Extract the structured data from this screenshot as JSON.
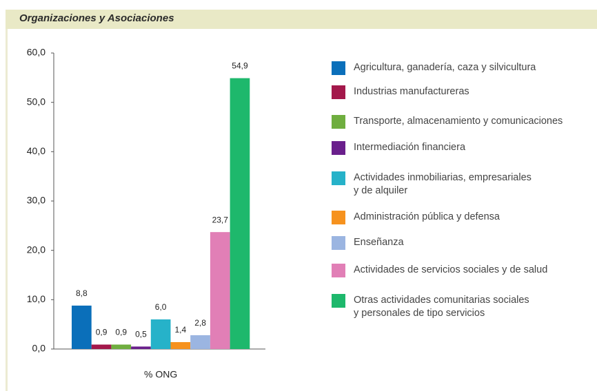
{
  "chart_data": {
    "type": "bar",
    "title": "Organizaciones y Asociaciones",
    "categories": [
      "% ONG"
    ],
    "ylim": [
      0,
      60
    ],
    "yticks": [
      {
        "value": 0,
        "label": "0,0"
      },
      {
        "value": 10,
        "label": "10,0"
      },
      {
        "value": 20,
        "label": "20,0"
      },
      {
        "value": 30,
        "label": "30,0"
      },
      {
        "value": 40,
        "label": "40,0"
      },
      {
        "value": 50,
        "label": "50,0"
      },
      {
        "value": 60,
        "label": "60,0"
      }
    ],
    "grid": false,
    "legend": "right",
    "series": [
      {
        "name": "Agricultura, ganadería, caza y silvicultura",
        "color": "#0a6fba",
        "values": [
          8.8
        ],
        "value_labels": [
          "8,8"
        ]
      },
      {
        "name": "Industrias manufactureras",
        "color": "#a3184b",
        "values": [
          0.9
        ],
        "value_labels": [
          "0,9"
        ]
      },
      {
        "name": "Transporte, almacenamiento y comunicaciones",
        "color": "#6fae3f",
        "values": [
          0.9
        ],
        "value_labels": [
          "0,9"
        ]
      },
      {
        "name": "Intermediación financiera",
        "color": "#6a1f8c",
        "values": [
          0.5
        ],
        "value_labels": [
          "0,5"
        ]
      },
      {
        "name": "Actividades inmobiliarias, empresariales\ny de alquiler",
        "color": "#26b2c9",
        "values": [
          6.0
        ],
        "value_labels": [
          "6,0"
        ]
      },
      {
        "name": "Administración pública y defensa",
        "color": "#f6921e",
        "values": [
          1.4
        ],
        "value_labels": [
          "1,4"
        ]
      },
      {
        "name": "Enseñanza",
        "color": "#9bb5e1",
        "values": [
          2.8
        ],
        "value_labels": [
          "2,8"
        ]
      },
      {
        "name": "Actividades de servicios sociales y de salud",
        "color": "#e17fb6",
        "values": [
          23.7
        ],
        "value_labels": [
          "23,7"
        ]
      },
      {
        "name": "Otras actividades comunitarias sociales\ny personales de tipo servicios",
        "color": "#1eb86c",
        "values": [
          54.9
        ],
        "value_labels": [
          "54,9"
        ]
      }
    ]
  }
}
